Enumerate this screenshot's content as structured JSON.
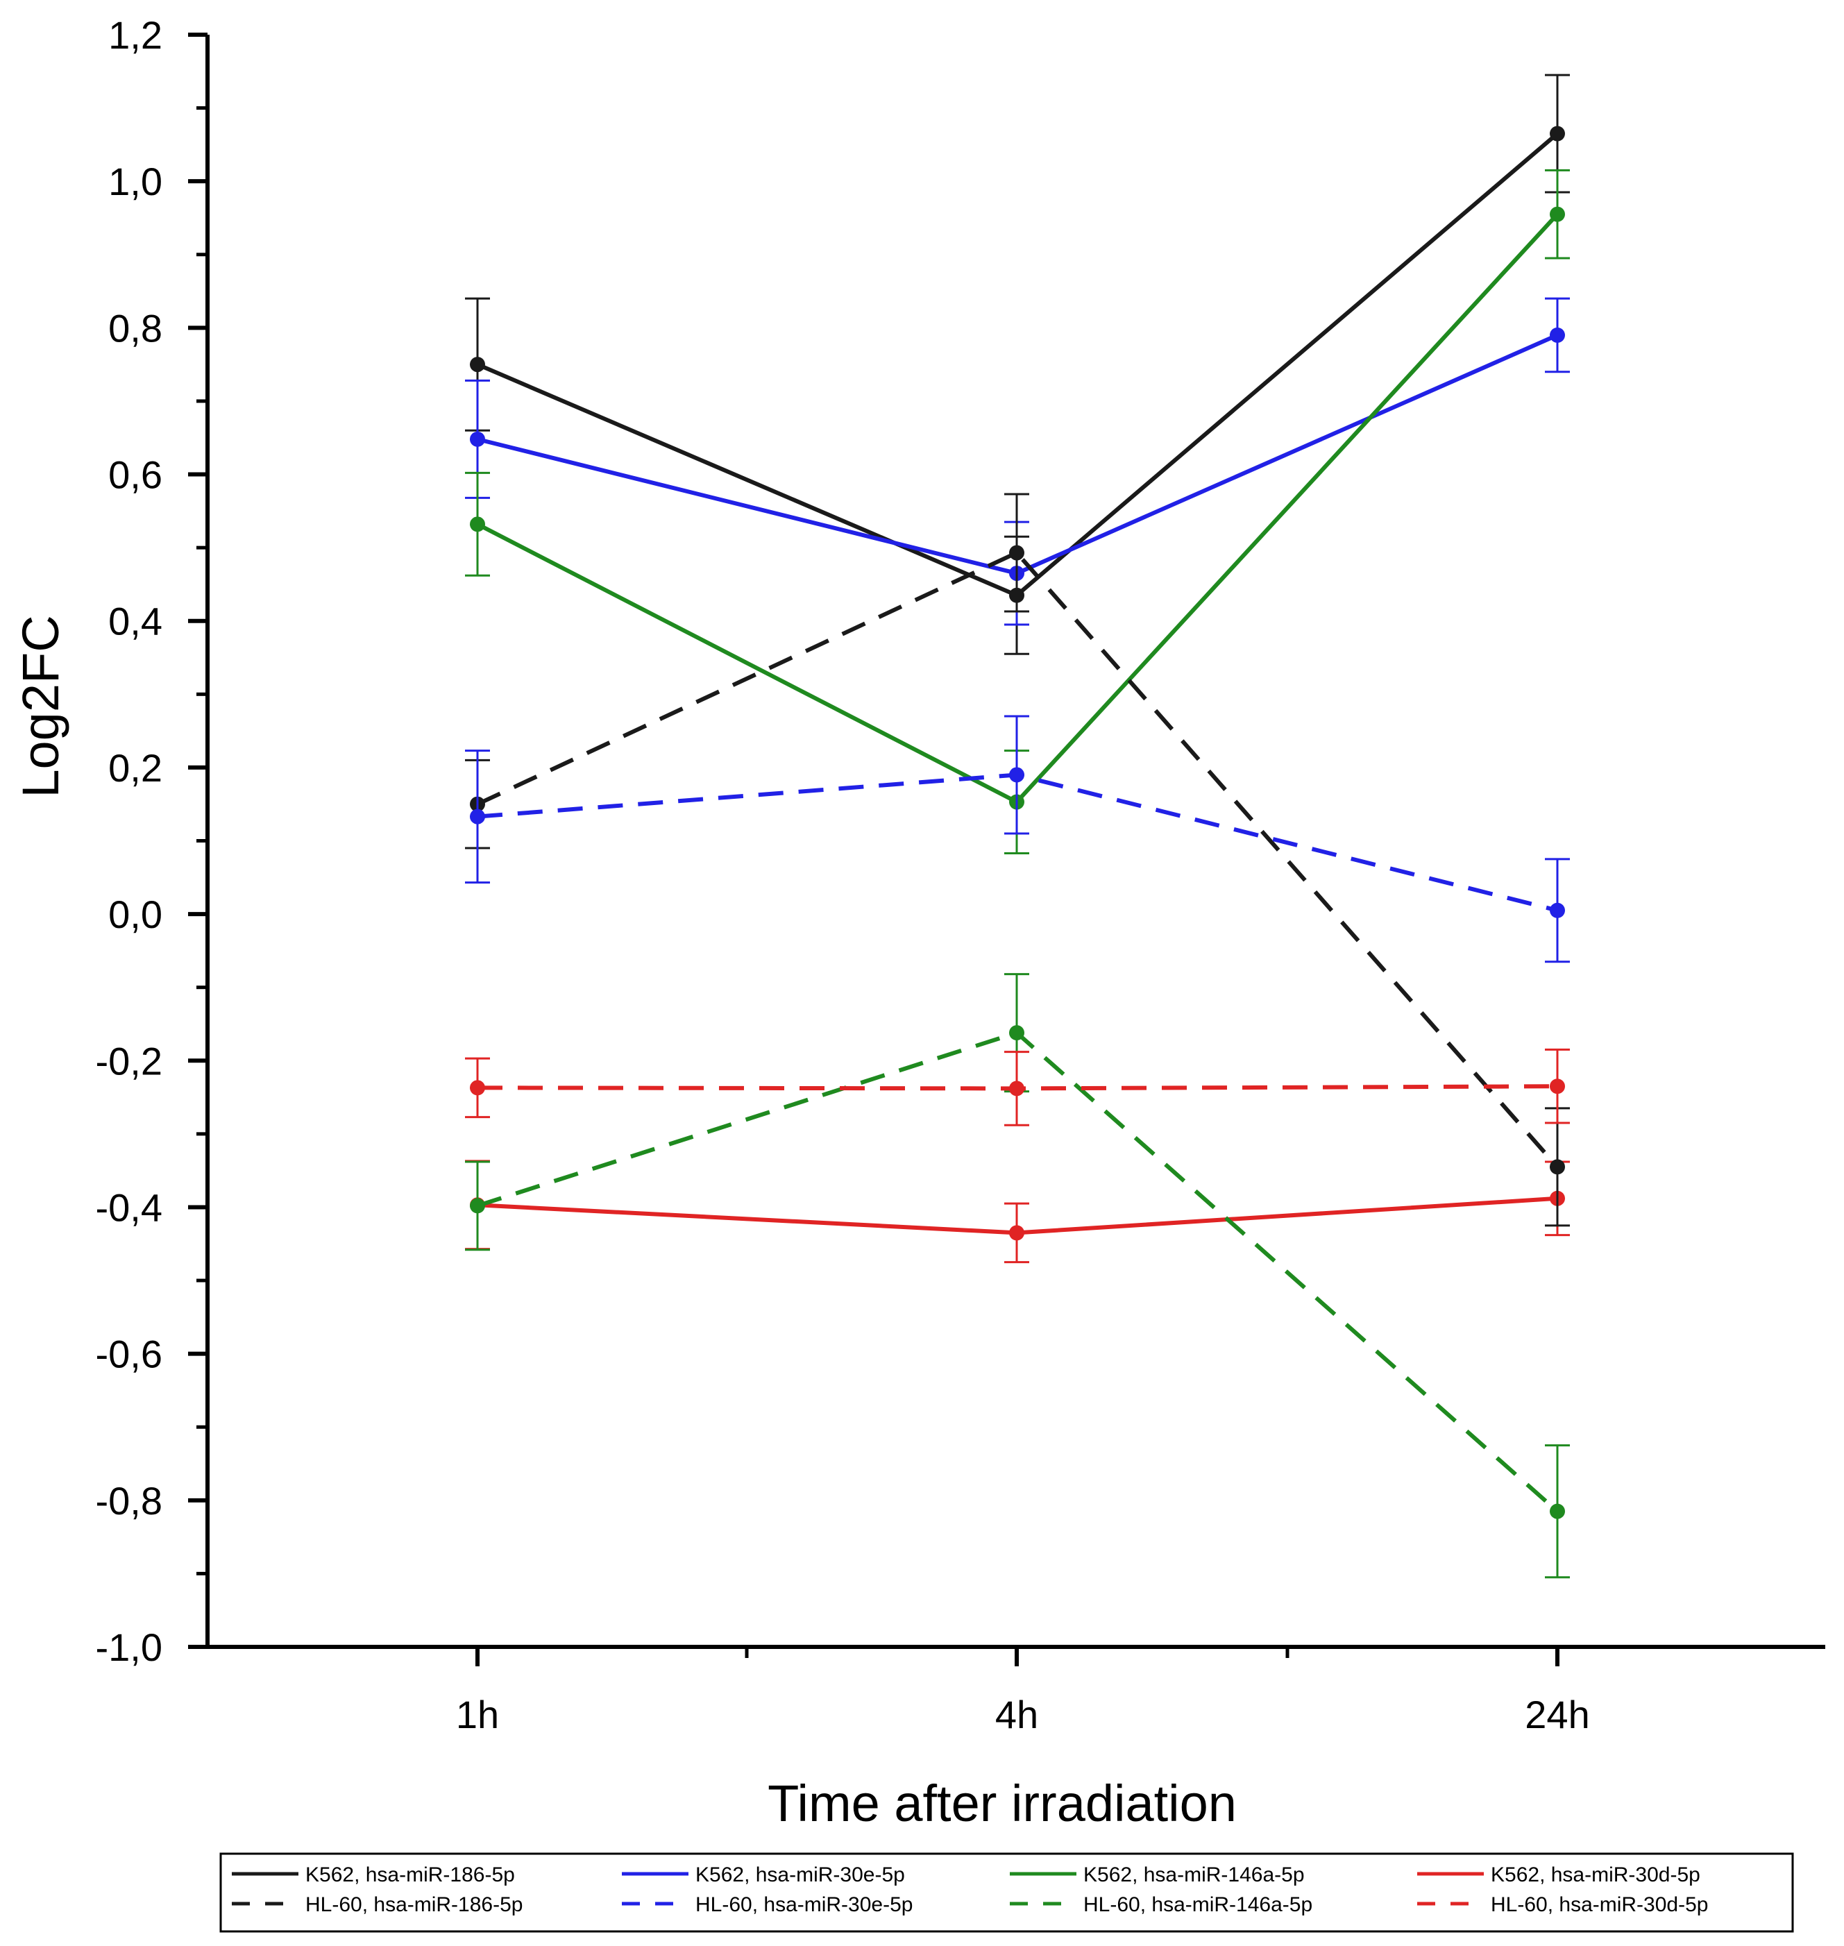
{
  "chart_data": {
    "type": "line",
    "xlabel": "Time after irradiation",
    "ylabel": "Log2FC",
    "categories": [
      "1h",
      "4h",
      "24h"
    ],
    "ylim": [
      -1.0,
      1.2
    ],
    "yticks": [
      "-1,0",
      "-0,8",
      "-0,6",
      "-0,4",
      "-0,2",
      "0,0",
      "0,2",
      "0,4",
      "0,6",
      "0,8",
      "1,0",
      "1,2"
    ],
    "series": [
      {
        "name": "K562, hsa-miR-186-5p",
        "color": "#1a1a1a",
        "dash": false,
        "values": [
          0.75,
          0.435,
          1.065
        ],
        "errors": [
          0.09,
          0.08,
          0.08
        ]
      },
      {
        "name": "K562, hsa-miR-30e-5p",
        "color": "#2121e6",
        "dash": false,
        "values": [
          0.648,
          0.465,
          0.79
        ],
        "errors": [
          0.08,
          0.07,
          0.05
        ]
      },
      {
        "name": "K562, hsa-miR-146a-5p",
        "color": "#1f8a1f",
        "dash": false,
        "values": [
          0.532,
          0.153,
          0.955
        ],
        "errors": [
          0.07,
          0.07,
          0.06
        ]
      },
      {
        "name": "K562, hsa-miR-30d-5p",
        "color": "#e02424",
        "dash": false,
        "values": [
          -0.397,
          -0.435,
          -0.388
        ],
        "errors": [
          0.06,
          0.04,
          0.05
        ]
      },
      {
        "name": "HL-60, hsa-miR-186-5p",
        "color": "#1a1a1a",
        "dash": true,
        "values": [
          0.15,
          0.493,
          -0.345
        ],
        "errors": [
          0.06,
          0.08,
          0.08
        ]
      },
      {
        "name": "HL-60, hsa-miR-30e-5p",
        "color": "#2121e6",
        "dash": true,
        "values": [
          0.133,
          0.19,
          0.005
        ],
        "errors": [
          0.09,
          0.08,
          0.07
        ]
      },
      {
        "name": "HL-60, hsa-miR-146a-5p",
        "color": "#1f8a1f",
        "dash": true,
        "values": [
          -0.398,
          -0.162,
          -0.815
        ],
        "errors": [
          0.06,
          0.08,
          0.09
        ]
      },
      {
        "name": "HL-60, hsa-miR-30d-5p",
        "color": "#e02424",
        "dash": true,
        "values": [
          -0.237,
          -0.238,
          -0.235
        ],
        "errors": [
          0.04,
          0.05,
          0.05
        ]
      }
    ],
    "legend": "bottom"
  }
}
